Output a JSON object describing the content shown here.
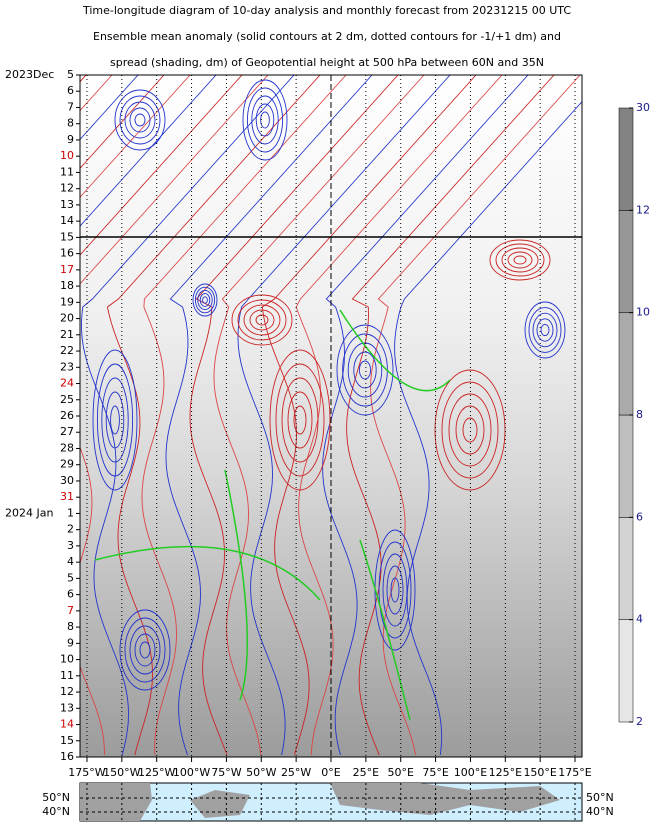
{
  "chart_data": {
    "type": "hovmoller",
    "title": [
      "Time-longitude diagram of 10-day analysis and monthly forecast from 20231215 00 UTC",
      "Ensemble mean anomaly (solid contours at 2 dm, dotted contours for -1/+1 dm) and",
      "spread (shading, dm) of Geopotential height at 500 hPa between 60N and 35N"
    ],
    "months": [
      {
        "name": "2023Dec",
        "days": [
          "5",
          "6",
          "7",
          "8",
          "9",
          "10",
          "11",
          "12",
          "13",
          "14",
          "15",
          "16",
          "17",
          "18",
          "19",
          "20",
          "21",
          "22",
          "23",
          "24",
          "25",
          "26",
          "27",
          "28",
          "29",
          "30",
          "31"
        ],
        "day_colors": [
          "#000",
          "#000",
          "#000",
          "#000",
          "#000",
          "#cc0000",
          "#000",
          "#000",
          "#000",
          "#000",
          "#000",
          "#000",
          "#cc0000",
          "#000",
          "#000",
          "#000",
          "#000",
          "#000",
          "#000",
          "#cc0000",
          "#000",
          "#000",
          "#000",
          "#000",
          "#000",
          "#000",
          "#cc0000"
        ]
      },
      {
        "name": "2024 Jan",
        "days": [
          "1",
          "2",
          "3",
          "4",
          "5",
          "6",
          "7",
          "8",
          "9",
          "10",
          "11",
          "12",
          "13",
          "14",
          "15",
          "16"
        ],
        "day_colors": [
          "#000",
          "#000",
          "#000",
          "#000",
          "#000",
          "#000",
          "#cc0000",
          "#000",
          "#000",
          "#000",
          "#000",
          "#000",
          "#000",
          "#cc0000",
          "#000",
          "#000"
        ]
      }
    ],
    "xlim": [
      -180,
      180
    ],
    "xticks": [
      {
        "value": -175,
        "label": "175°W"
      },
      {
        "value": -150,
        "label": "150°W"
      },
      {
        "value": -125,
        "label": "125°W"
      },
      {
        "value": -100,
        "label": "100°W"
      },
      {
        "value": -75,
        "label": "75°W"
      },
      {
        "value": -50,
        "label": "50°W"
      },
      {
        "value": -25,
        "label": "25°W"
      },
      {
        "value": 0,
        "label": "0°E"
      },
      {
        "value": 25,
        "label": "25°E"
      },
      {
        "value": 50,
        "label": "50°E"
      },
      {
        "value": 75,
        "label": "75°E"
      },
      {
        "value": 100,
        "label": "100°E"
      },
      {
        "value": 125,
        "label": "125°E"
      },
      {
        "value": 150,
        "label": "150°E"
      },
      {
        "value": 175,
        "label": "175°E"
      }
    ],
    "colorbar": {
      "ticks": [
        2,
        4,
        6,
        8,
        10,
        12,
        30
      ],
      "colors": [
        "#e6e6e6",
        "#d2d2d2",
        "#bebebe",
        "#aaaaaa",
        "#979797",
        "#828282"
      ]
    },
    "map_labels": [
      "50°N",
      "40°N"
    ]
  }
}
